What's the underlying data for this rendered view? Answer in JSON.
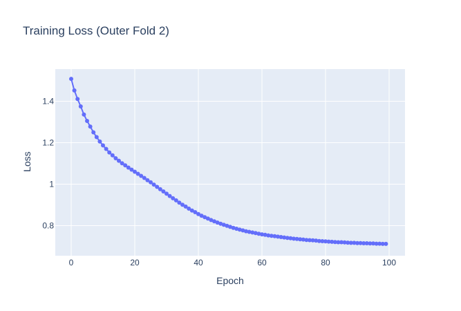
{
  "chart_data": {
    "type": "line",
    "mode": "lines+markers",
    "title": "Training Loss (Outer Fold 2)",
    "xlabel": "Epoch",
    "ylabel": "Loss",
    "xlim": [
      -5,
      105
    ],
    "ylim": [
      0.655,
      1.555
    ],
    "xticks": [
      0,
      20,
      40,
      60,
      80,
      100
    ],
    "yticks": [
      0.8,
      1,
      1.2,
      1.4
    ],
    "ytick_labels": [
      "0.8",
      "1",
      "1.2",
      "1.4"
    ],
    "grid": true,
    "plot_background": "#e5ecf6",
    "series_color": "#636efa",
    "x": [
      0,
      1,
      2,
      3,
      4,
      5,
      6,
      7,
      8,
      9,
      10,
      11,
      12,
      13,
      14,
      15,
      16,
      17,
      18,
      19,
      20,
      21,
      22,
      23,
      24,
      25,
      26,
      27,
      28,
      29,
      30,
      31,
      32,
      33,
      34,
      35,
      36,
      37,
      38,
      39,
      40,
      41,
      42,
      43,
      44,
      45,
      46,
      47,
      48,
      49,
      50,
      51,
      52,
      53,
      54,
      55,
      56,
      57,
      58,
      59,
      60,
      61,
      62,
      63,
      64,
      65,
      66,
      67,
      68,
      69,
      70,
      71,
      72,
      73,
      74,
      75,
      76,
      77,
      78,
      79,
      80,
      81,
      82,
      83,
      84,
      85,
      86,
      87,
      88,
      89,
      90,
      91,
      92,
      93,
      94,
      95,
      96,
      97,
      98,
      99
    ],
    "y": [
      1.508,
      1.452,
      1.411,
      1.375,
      1.336,
      1.305,
      1.278,
      1.25,
      1.227,
      1.206,
      1.187,
      1.17,
      1.153,
      1.139,
      1.125,
      1.113,
      1.101,
      1.091,
      1.08,
      1.07,
      1.06,
      1.05,
      1.04,
      1.03,
      1.019,
      1.009,
      0.998,
      0.987,
      0.976,
      0.965,
      0.954,
      0.943,
      0.932,
      0.922,
      0.911,
      0.901,
      0.892,
      0.882,
      0.873,
      0.865,
      0.856,
      0.848,
      0.841,
      0.834,
      0.827,
      0.821,
      0.815,
      0.809,
      0.804,
      0.799,
      0.794,
      0.789,
      0.785,
      0.781,
      0.777,
      0.773,
      0.77,
      0.767,
      0.764,
      0.761,
      0.758,
      0.756,
      0.753,
      0.751,
      0.749,
      0.747,
      0.745,
      0.743,
      0.741,
      0.739,
      0.737,
      0.736,
      0.734,
      0.733,
      0.731,
      0.73,
      0.729,
      0.728,
      0.726,
      0.725,
      0.724,
      0.723,
      0.722,
      0.721,
      0.72,
      0.72,
      0.719,
      0.718,
      0.717,
      0.717,
      0.716,
      0.716,
      0.715,
      0.715,
      0.714,
      0.714,
      0.713,
      0.713,
      0.712,
      0.712
    ]
  }
}
